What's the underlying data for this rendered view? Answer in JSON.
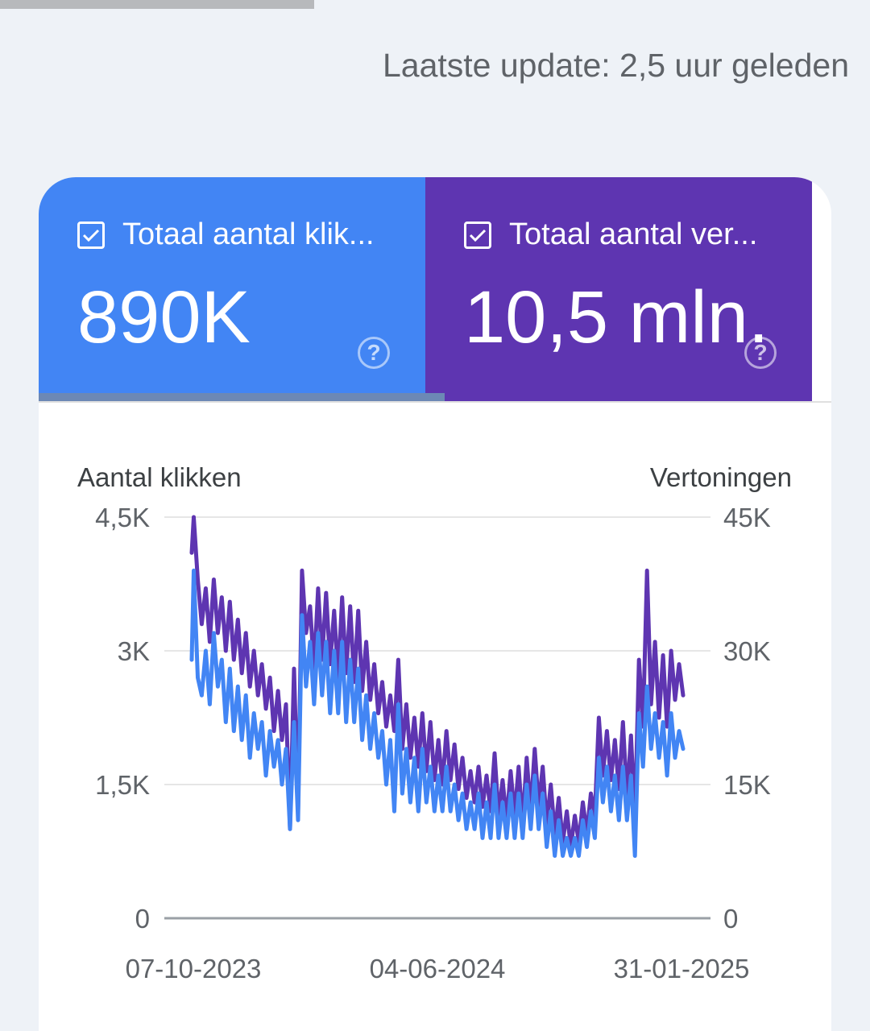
{
  "header": {
    "last_update": "Laatste update: 2,5 uur geleden"
  },
  "tiles": [
    {
      "label": "Totaal aantal klik...",
      "value": "890K",
      "checked": true,
      "color": "#4285f4"
    },
    {
      "label": "Totaal aantal ver...",
      "value": "10,5 mln.",
      "checked": true,
      "color": "#5e35b1"
    }
  ],
  "help_glyph": "?",
  "chart_data": {
    "type": "line",
    "y_left_label": "Aantal klikken",
    "y_right_label": "Vertoningen",
    "y_left_ticks": [
      "0",
      "1,5K",
      "3K",
      "4,5K"
    ],
    "y_right_ticks": [
      "0",
      "15K",
      "30K",
      "45K"
    ],
    "ylim_left": [
      0,
      4500
    ],
    "ylim_right": [
      0,
      45000
    ],
    "x_ticks": [
      "07-10-2023",
      "04-06-2024",
      "31-01-2025"
    ],
    "x_range": [
      "2023-10-07",
      "2025-02-28"
    ],
    "grid": true,
    "series": [
      {
        "name": "Totaal aantal vertoningen",
        "axis": "right",
        "color": "#5e35b1",
        "points": [
          [
            0.0,
            41000
          ],
          [
            0.5,
            45000
          ],
          [
            1.5,
            38000
          ],
          [
            2.5,
            33000
          ],
          [
            3.5,
            37000
          ],
          [
            4.5,
            31000
          ],
          [
            5.5,
            38000
          ],
          [
            6.5,
            32000
          ],
          [
            7.5,
            36000
          ],
          [
            8.5,
            30000
          ],
          [
            9.5,
            35500
          ],
          [
            10.5,
            29000
          ],
          [
            11.5,
            33500
          ],
          [
            12.5,
            27500
          ],
          [
            13.5,
            32000
          ],
          [
            14.5,
            26000
          ],
          [
            15.5,
            30000
          ],
          [
            16.5,
            25000
          ],
          [
            17.5,
            28500
          ],
          [
            18.5,
            23500
          ],
          [
            19.5,
            27000
          ],
          [
            20.5,
            21000
          ],
          [
            21.5,
            25500
          ],
          [
            22.5,
            20000
          ],
          [
            23.5,
            24000
          ],
          [
            24.5,
            10000
          ],
          [
            25.5,
            28000
          ],
          [
            26.5,
            12000
          ],
          [
            27.5,
            39000
          ],
          [
            28.5,
            32000
          ],
          [
            29.5,
            35000
          ],
          [
            30.5,
            28000
          ],
          [
            31.5,
            37000
          ],
          [
            32.5,
            29000
          ],
          [
            33.5,
            36500
          ],
          [
            34.5,
            28500
          ],
          [
            35.5,
            34500
          ],
          [
            36.5,
            27000
          ],
          [
            37.5,
            36000
          ],
          [
            38.5,
            27500
          ],
          [
            39.5,
            35000
          ],
          [
            40.5,
            26500
          ],
          [
            41.5,
            34500
          ],
          [
            42.5,
            25500
          ],
          [
            43.5,
            31000
          ],
          [
            44.5,
            24500
          ],
          [
            45.5,
            28500
          ],
          [
            46.5,
            23000
          ],
          [
            47.5,
            26500
          ],
          [
            48.5,
            21500
          ],
          [
            49.5,
            25000
          ],
          [
            50.5,
            21000
          ],
          [
            51.5,
            29000
          ],
          [
            52.5,
            19000
          ],
          [
            53.5,
            24000
          ],
          [
            54.5,
            18000
          ],
          [
            55.5,
            22500
          ],
          [
            56.5,
            17000
          ],
          [
            57.5,
            23000
          ],
          [
            58.5,
            16500
          ],
          [
            59.5,
            22000
          ],
          [
            60.5,
            15500
          ],
          [
            61.5,
            20000
          ],
          [
            62.5,
            15000
          ],
          [
            63.5,
            21000
          ],
          [
            64.5,
            15500
          ],
          [
            65.5,
            19500
          ],
          [
            66.5,
            14500
          ],
          [
            67.5,
            18000
          ],
          [
            68.5,
            13500
          ],
          [
            69.5,
            16500
          ],
          [
            70.5,
            13000
          ],
          [
            71.5,
            17000
          ],
          [
            72.5,
            12500
          ],
          [
            73.5,
            16000
          ],
          [
            74.5,
            12000
          ],
          [
            75.5,
            18500
          ],
          [
            76.5,
            11500
          ],
          [
            77.5,
            15500
          ],
          [
            78.5,
            11000
          ],
          [
            79.5,
            16500
          ],
          [
            80.5,
            11500
          ],
          [
            81.5,
            17000
          ],
          [
            82.5,
            10500
          ],
          [
            83.5,
            18000
          ],
          [
            84.5,
            12000
          ],
          [
            85.5,
            19000
          ],
          [
            86.5,
            12500
          ],
          [
            87.5,
            17000
          ],
          [
            88.5,
            10500
          ],
          [
            89.5,
            15000
          ],
          [
            90.5,
            9500
          ],
          [
            91.5,
            13500
          ],
          [
            92.5,
            8500
          ],
          [
            93.5,
            12000
          ],
          [
            94.5,
            8000
          ],
          [
            95.5,
            11500
          ],
          [
            96.5,
            8500
          ],
          [
            97.5,
            13000
          ],
          [
            98.5,
            9500
          ],
          [
            99.5,
            14000
          ],
          [
            100.5,
            11500
          ],
          [
            101.5,
            22500
          ],
          [
            102.5,
            16000
          ],
          [
            103.5,
            21000
          ],
          [
            104.5,
            15500
          ],
          [
            105.5,
            20000
          ],
          [
            106.5,
            14500
          ],
          [
            107.5,
            22000
          ],
          [
            108.5,
            13500
          ],
          [
            109.5,
            20500
          ],
          [
            110.5,
            11000
          ],
          [
            111.5,
            29000
          ],
          [
            112.5,
            21500
          ],
          [
            113.5,
            39000
          ],
          [
            114.5,
            24000
          ],
          [
            115.5,
            31000
          ],
          [
            116.5,
            22500
          ],
          [
            117.5,
            29500
          ],
          [
            118.5,
            21500
          ],
          [
            119.5,
            30000
          ],
          [
            120.5,
            24500
          ],
          [
            121.5,
            28500
          ],
          [
            122.5,
            25000
          ]
        ]
      },
      {
        "name": "Totaal aantal klikken",
        "axis": "left",
        "color": "#4285f4",
        "points": [
          [
            0.0,
            2900
          ],
          [
            0.5,
            3900
          ],
          [
            1.5,
            2700
          ],
          [
            2.5,
            2500
          ],
          [
            3.5,
            3000
          ],
          [
            4.5,
            2400
          ],
          [
            5.5,
            3200
          ],
          [
            6.5,
            2600
          ],
          [
            7.5,
            2900
          ],
          [
            8.5,
            2200
          ],
          [
            9.5,
            2800
          ],
          [
            10.5,
            2100
          ],
          [
            11.5,
            2600
          ],
          [
            12.5,
            2000
          ],
          [
            13.5,
            2500
          ],
          [
            14.5,
            1800
          ],
          [
            15.5,
            2300
          ],
          [
            16.5,
            1900
          ],
          [
            17.5,
            2200
          ],
          [
            18.5,
            1600
          ],
          [
            19.5,
            2100
          ],
          [
            20.5,
            1700
          ],
          [
            21.5,
            2000
          ],
          [
            22.5,
            1500
          ],
          [
            23.5,
            1900
          ],
          [
            24.5,
            1000
          ],
          [
            25.5,
            2200
          ],
          [
            26.5,
            1100
          ],
          [
            27.5,
            3400
          ],
          [
            28.5,
            2600
          ],
          [
            29.5,
            3100
          ],
          [
            30.5,
            2400
          ],
          [
            31.5,
            3200
          ],
          [
            32.5,
            2500
          ],
          [
            33.5,
            3100
          ],
          [
            34.5,
            2300
          ],
          [
            35.5,
            3000
          ],
          [
            36.5,
            2300
          ],
          [
            37.5,
            3100
          ],
          [
            38.5,
            2200
          ],
          [
            39.5,
            2900
          ],
          [
            40.5,
            2200
          ],
          [
            41.5,
            2800
          ],
          [
            42.5,
            2000
          ],
          [
            43.5,
            2500
          ],
          [
            44.5,
            1900
          ],
          [
            45.5,
            2300
          ],
          [
            46.5,
            1800
          ],
          [
            47.5,
            2100
          ],
          [
            48.5,
            1500
          ],
          [
            49.5,
            2000
          ],
          [
            50.5,
            1200
          ],
          [
            51.5,
            2400
          ],
          [
            52.5,
            1400
          ],
          [
            53.5,
            1900
          ],
          [
            54.5,
            1300
          ],
          [
            55.5,
            1800
          ],
          [
            56.5,
            1200
          ],
          [
            57.5,
            1900
          ],
          [
            58.5,
            1300
          ],
          [
            59.5,
            1700
          ],
          [
            60.5,
            1200
          ],
          [
            61.5,
            1600
          ],
          [
            62.5,
            1200
          ],
          [
            63.5,
            1700
          ],
          [
            64.5,
            1200
          ],
          [
            65.5,
            1500
          ],
          [
            66.5,
            1100
          ],
          [
            67.5,
            1400
          ],
          [
            68.5,
            1000
          ],
          [
            69.5,
            1300
          ],
          [
            70.5,
            1000
          ],
          [
            71.5,
            1400
          ],
          [
            72.5,
            900
          ],
          [
            73.5,
            1300
          ],
          [
            74.5,
            900
          ],
          [
            75.5,
            1500
          ],
          [
            76.5,
            900
          ],
          [
            77.5,
            1300
          ],
          [
            78.5,
            900
          ],
          [
            79.5,
            1400
          ],
          [
            80.5,
            900
          ],
          [
            81.5,
            1400
          ],
          [
            82.5,
            900
          ],
          [
            83.5,
            1500
          ],
          [
            84.5,
            1000
          ],
          [
            85.5,
            1600
          ],
          [
            86.5,
            1000
          ],
          [
            87.5,
            1400
          ],
          [
            88.5,
            800
          ],
          [
            89.5,
            1200
          ],
          [
            90.5,
            700
          ],
          [
            91.5,
            1100
          ],
          [
            92.5,
            700
          ],
          [
            93.5,
            900
          ],
          [
            94.5,
            700
          ],
          [
            95.5,
            900
          ],
          [
            96.5,
            700
          ],
          [
            97.5,
            1100
          ],
          [
            98.5,
            800
          ],
          [
            99.5,
            1200
          ],
          [
            100.5,
            900
          ],
          [
            101.5,
            1800
          ],
          [
            102.5,
            1300
          ],
          [
            103.5,
            1700
          ],
          [
            104.5,
            1200
          ],
          [
            105.5,
            1600
          ],
          [
            106.5,
            1100
          ],
          [
            107.5,
            1700
          ],
          [
            108.5,
            1100
          ],
          [
            109.5,
            1600
          ],
          [
            110.5,
            700
          ],
          [
            111.5,
            2300
          ],
          [
            112.5,
            1700
          ],
          [
            113.5,
            2600
          ],
          [
            114.5,
            1900
          ],
          [
            115.5,
            2300
          ],
          [
            116.5,
            1800
          ],
          [
            117.5,
            2200
          ],
          [
            118.5,
            1600
          ],
          [
            119.5,
            2300
          ],
          [
            120.5,
            1800
          ],
          [
            121.5,
            2100
          ],
          [
            122.5,
            1900
          ]
        ]
      }
    ]
  }
}
